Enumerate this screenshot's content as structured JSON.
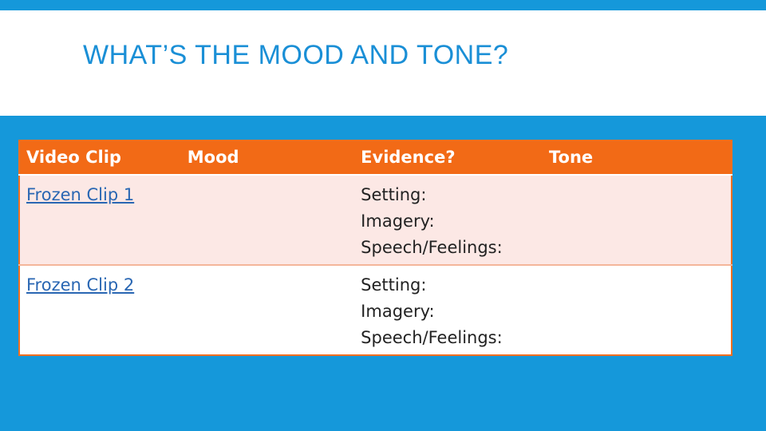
{
  "slide": {
    "title": "WHAT’S THE MOOD AND TONE?"
  },
  "table": {
    "headers": [
      "Video Clip",
      "Mood",
      "Evidence?",
      "Tone"
    ],
    "rows": [
      {
        "clip": "Frozen Clip 1",
        "mood": "",
        "evidence": [
          "Setting:",
          "Imagery:",
          "Speech/Feelings:"
        ],
        "tone": ""
      },
      {
        "clip": "Frozen Clip 2",
        "mood": "",
        "evidence": [
          "Setting:",
          "Imagery:",
          "Speech/Feelings:"
        ],
        "tone": ""
      }
    ]
  },
  "colors": {
    "background": "#1598da",
    "title_text": "#1a8fd6",
    "header_fill": "#f26a16",
    "row_band": "#fce8e5",
    "link": "#2a67b3"
  }
}
